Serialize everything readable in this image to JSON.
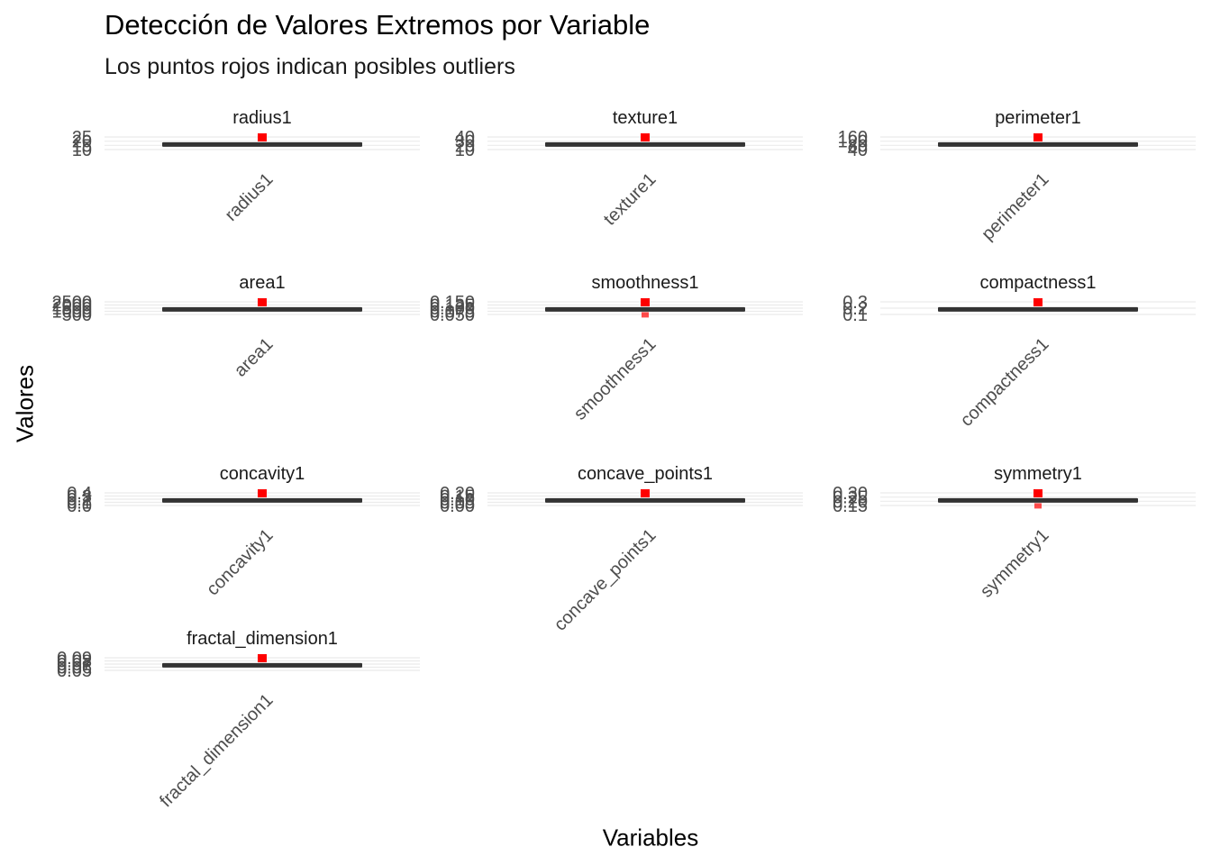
{
  "title": "Detección de Valores Extremos por Variable",
  "subtitle": "Los puntos rojos indican posibles outliers",
  "chart_data": {
    "type": "boxplot",
    "xlabel": "Variables",
    "ylabel": "Valores",
    "layout": "facet_wrap 3 columns, free y scales",
    "outlier_color": "#ff0000",
    "box_color": "#333333",
    "grid_color": "#ebebeb",
    "panels": [
      {
        "name": "radius1",
        "y_ticks": [
          "10",
          "15",
          "20",
          "25"
        ],
        "outliers": "above box"
      },
      {
        "name": "texture1",
        "y_ticks": [
          "10",
          "20",
          "30",
          "40"
        ],
        "outliers": "above box"
      },
      {
        "name": "perimeter1",
        "y_ticks": [
          "40",
          "80",
          "120",
          "160"
        ],
        "outliers": "above box"
      },
      {
        "name": "area1",
        "y_ticks": [
          "500",
          "1000",
          "1500",
          "2000",
          "2500"
        ],
        "outliers": "above box"
      },
      {
        "name": "smoothness1",
        "y_ticks": [
          "0.050",
          "0.075",
          "0.100",
          "0.125",
          "0.150"
        ],
        "outliers": "above and below box"
      },
      {
        "name": "compactness1",
        "y_ticks": [
          "0.1",
          "0.2",
          "0.3"
        ],
        "outliers": "above box"
      },
      {
        "name": "concavity1",
        "y_ticks": [
          "0.0",
          "0.1",
          "0.2",
          "0.3",
          "0.4"
        ],
        "outliers": "above box"
      },
      {
        "name": "concave_points1",
        "y_ticks": [
          "0.00",
          "0.05",
          "0.10",
          "0.15",
          "0.20"
        ],
        "outliers": "above box"
      },
      {
        "name": "symmetry1",
        "y_ticks": [
          "0.15",
          "0.20",
          "0.25",
          "0.30"
        ],
        "outliers": "above and below box"
      },
      {
        "name": "fractal_dimension1",
        "y_ticks": [
          "0.05",
          "0.06",
          "0.07",
          "0.08",
          "0.09"
        ],
        "outliers": "above box"
      }
    ]
  }
}
